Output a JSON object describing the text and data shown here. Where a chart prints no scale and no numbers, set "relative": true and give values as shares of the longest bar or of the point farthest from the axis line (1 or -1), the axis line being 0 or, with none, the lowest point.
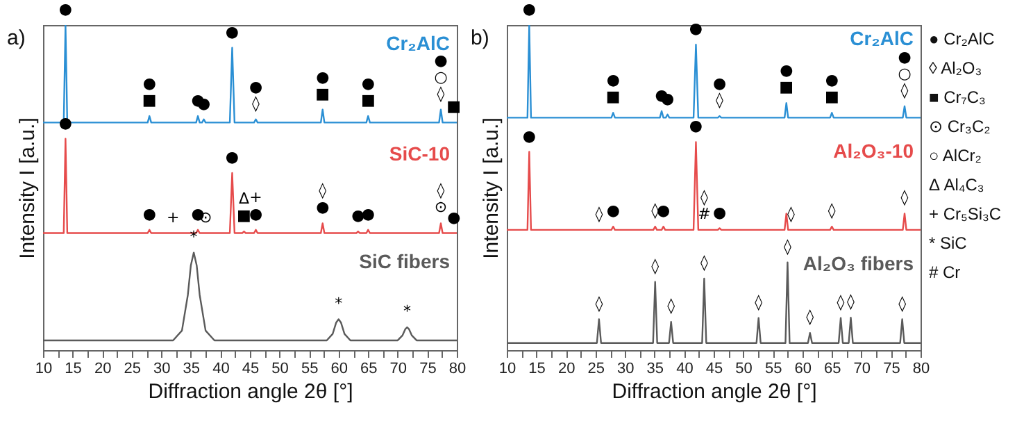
{
  "chart_data": [
    {
      "type": "line",
      "title": "a)",
      "xlabel": "Diffraction angle 2θ [°]",
      "ylabel": "Intensity I [a.u.]",
      "relative": true,
      "tick_labels": "x",
      "xlim": [
        10,
        80
      ],
      "xticks": [
        10,
        {
          "value": 12.5,
          "label": null
        },
        15,
        {
          "value": 17.5,
          "label": null
        },
        20,
        {
          "value": 22.5,
          "label": null
        },
        25,
        {
          "value": 27.5,
          "label": null
        },
        30,
        {
          "value": 32.5,
          "label": null
        },
        35,
        {
          "value": 37.5,
          "label": null
        },
        40,
        {
          "value": 42.5,
          "label": null
        },
        45,
        {
          "value": 47.5,
          "label": null
        },
        50,
        {
          "value": 52.5,
          "label": null
        },
        55,
        {
          "value": 57.5,
          "label": null
        },
        60,
        {
          "value": 62.5,
          "label": null
        },
        65,
        {
          "value": 67.5,
          "label": null
        },
        70,
        {
          "value": 72.5,
          "label": null
        },
        75,
        {
          "value": 77.5,
          "label": null
        },
        80
      ],
      "series": [
        {
          "name": "Cr₂AlC",
          "color": "#2a8fd4",
          "x": [
            10,
            13.5,
            13.8,
            14.1,
            27.7,
            28,
            28.3,
            35.9,
            36.2,
            36.5,
            36.9,
            37.2,
            37.5,
            41.6,
            42,
            42.4,
            45.7,
            46,
            46.3,
            57,
            57.3,
            57.6,
            64.7,
            65,
            65.3,
            77,
            77.3,
            77.6,
            80
          ],
          "values": [
            0.7,
            0.7,
            1.0,
            0.7,
            0.7,
            0.72,
            0.7,
            0.7,
            0.72,
            0.7,
            0.7,
            0.71,
            0.7,
            0.7,
            0.93,
            0.7,
            0.7,
            0.71,
            0.7,
            0.7,
            0.74,
            0.7,
            0.7,
            0.72,
            0.7,
            0.7,
            0.74,
            0.7,
            0.7
          ]
        },
        {
          "name": "SiC-10",
          "color": "#e64b4b",
          "x": [
            10,
            13.5,
            13.8,
            14.1,
            27.7,
            28,
            28.3,
            35.9,
            36.2,
            36.5,
            41.6,
            42,
            42.4,
            43.7,
            44,
            44.3,
            45.7,
            46,
            46.3,
            57,
            57.3,
            57.6,
            63,
            63.3,
            63.6,
            64.7,
            65,
            65.3,
            77,
            77.3,
            77.6,
            80
          ],
          "values": [
            0.36,
            0.36,
            0.65,
            0.36,
            0.36,
            0.37,
            0.36,
            0.36,
            0.37,
            0.36,
            0.36,
            0.545,
            0.36,
            0.36,
            0.365,
            0.36,
            0.36,
            0.37,
            0.36,
            0.36,
            0.39,
            0.36,
            0.36,
            0.365,
            0.36,
            0.36,
            0.37,
            0.36,
            0.36,
            0.39,
            0.36,
            0.36
          ]
        },
        {
          "name": "SiC fibers",
          "color": "#5a5a5a",
          "x": [
            10,
            32,
            33.5,
            34.5,
            35,
            35.5,
            36,
            36.5,
            37.5,
            39,
            58,
            59,
            59.6,
            60,
            60.4,
            61,
            62,
            70,
            70.8,
            71.3,
            71.6,
            71.9,
            72.4,
            73.2,
            80
          ],
          "values": [
            0.03,
            0.03,
            0.06,
            0.17,
            0.26,
            0.3,
            0.26,
            0.17,
            0.06,
            0.03,
            0.03,
            0.05,
            0.085,
            0.095,
            0.085,
            0.05,
            0.03,
            0.03,
            0.045,
            0.065,
            0.07,
            0.065,
            0.045,
            0.03,
            0.03
          ]
        }
      ],
      "annotations": [
        {
          "text": "●",
          "x": 13.8,
          "y": 1.0
        },
        {
          "text": "■",
          "x": 28,
          "y": 0.72
        },
        {
          "text": "●",
          "x": 28,
          "y": 0.72
        },
        {
          "text": "●",
          "x": 36.2,
          "y": 0.72
        },
        {
          "text": "●",
          "x": 37.2,
          "y": 0.71
        },
        {
          "text": "●",
          "x": 42,
          "y": 0.93
        },
        {
          "text": "◊",
          "x": 46,
          "y": 0.71
        },
        {
          "text": "●",
          "x": 46,
          "y": 0.71
        },
        {
          "text": "■",
          "x": 57.3,
          "y": 0.74
        },
        {
          "text": "●",
          "x": 57.3,
          "y": 0.74
        },
        {
          "text": "■",
          "x": 65,
          "y": 0.72
        },
        {
          "text": "●",
          "x": 65,
          "y": 0.72
        },
        {
          "text": "◊",
          "x": 77.3,
          "y": 0.74
        },
        {
          "text": "○",
          "x": 77.3,
          "y": 0.74
        },
        {
          "text": "●",
          "x": 77.3,
          "y": 0.74
        },
        {
          "text": "■",
          "x": 79.5,
          "y": 0.7
        },
        {
          "text": "●",
          "x": 13.8,
          "y": 0.65
        },
        {
          "text": "●",
          "x": 28,
          "y": 0.37
        },
        {
          "text": "+",
          "x": 32,
          "y": 0.36
        },
        {
          "text": "●",
          "x": 36.2,
          "y": 0.37
        },
        {
          "text": "⊙",
          "x": 37.5,
          "y": 0.36
        },
        {
          "text": "●",
          "x": 42,
          "y": 0.545
        },
        {
          "text": "■",
          "x": 44,
          "y": 0.365
        },
        {
          "text": "Δ",
          "x": 44,
          "y": 0.365
        },
        {
          "text": "●",
          "x": 46,
          "y": 0.37
        },
        {
          "text": "+",
          "x": 46,
          "y": 0.37
        },
        {
          "text": "●",
          "x": 57.3,
          "y": 0.39
        },
        {
          "text": "◊",
          "x": 57.3,
          "y": 0.39
        },
        {
          "text": "●",
          "x": 63.3,
          "y": 0.365
        },
        {
          "text": "●",
          "x": 65,
          "y": 0.37
        },
        {
          "text": "⊙",
          "x": 77.3,
          "y": 0.39
        },
        {
          "text": "◊",
          "x": 77.3,
          "y": 0.39
        },
        {
          "text": "●",
          "x": 79.5,
          "y": 0.36
        },
        {
          "text": "*",
          "x": 35.5,
          "y": 0.3
        },
        {
          "text": "*",
          "x": 60,
          "y": 0.095
        },
        {
          "text": "*",
          "x": 71.6,
          "y": 0.07
        }
      ]
    },
    {
      "type": "line",
      "title": "b)",
      "xlabel": "Diffraction angle 2θ [°]",
      "ylabel": "Intensity I [a.u.]",
      "relative": true,
      "tick_labels": "x",
      "xlim": [
        10,
        80
      ],
      "xticks": [
        10,
        {
          "value": 12.5,
          "label": null
        },
        15,
        {
          "value": 17.5,
          "label": null
        },
        20,
        {
          "value": 22.5,
          "label": null
        },
        25,
        {
          "value": 27.5,
          "label": null
        },
        30,
        {
          "value": 32.5,
          "label": null
        },
        35,
        {
          "value": 37.5,
          "label": null
        },
        40,
        {
          "value": 42.5,
          "label": null
        },
        45,
        {
          "value": 47.5,
          "label": null
        },
        50,
        {
          "value": 52.5,
          "label": null
        },
        55,
        {
          "value": 57.5,
          "label": null
        },
        60,
        {
          "value": 62.5,
          "label": null
        },
        65,
        {
          "value": 67.5,
          "label": null
        },
        70,
        {
          "value": 72.5,
          "label": null
        },
        75,
        {
          "value": 77.5,
          "label": null
        },
        80
      ],
      "series": [
        {
          "name": "Cr₂AlC",
          "color": "#2a8fd4",
          "x": [
            10,
            13.5,
            13.8,
            14.1,
            27.7,
            28,
            28.3,
            35.9,
            36.2,
            36.5,
            36.9,
            37.2,
            37.5,
            41.6,
            42,
            42.4,
            45.7,
            46,
            46.3,
            57,
            57.3,
            57.6,
            64.7,
            65,
            65.3,
            77,
            77.3,
            77.6,
            80
          ],
          "values": [
            0.715,
            0.715,
            1.0,
            0.715,
            0.715,
            0.73,
            0.715,
            0.715,
            0.735,
            0.715,
            0.715,
            0.725,
            0.715,
            0.715,
            0.94,
            0.715,
            0.715,
            0.72,
            0.715,
            0.715,
            0.76,
            0.715,
            0.715,
            0.73,
            0.715,
            0.715,
            0.75,
            0.715,
            0.715
          ]
        },
        {
          "name": "Al₂O₃-10",
          "color": "#e64b4b",
          "x": [
            10,
            13.5,
            13.8,
            14.1,
            27.7,
            28,
            28.3,
            34.8,
            35.1,
            35.4,
            36.2,
            36.5,
            36.8,
            41.6,
            42,
            42.4,
            45.7,
            46,
            46.3,
            57,
            57.3,
            57.6,
            64.7,
            65,
            65.3,
            77,
            77.3,
            77.6,
            80
          ],
          "values": [
            0.37,
            0.37,
            0.61,
            0.37,
            0.37,
            0.38,
            0.37,
            0.37,
            0.38,
            0.37,
            0.37,
            0.38,
            0.37,
            0.37,
            0.64,
            0.37,
            0.37,
            0.375,
            0.37,
            0.37,
            0.42,
            0.37,
            0.37,
            0.38,
            0.37,
            0.37,
            0.42,
            0.37,
            0.37
          ]
        },
        {
          "name": "Al₂O₃ fibers",
          "color": "#5a5a5a",
          "x": [
            10,
            25.25,
            25.6,
            25.95,
            34.75,
            35.1,
            35.45,
            37.45,
            37.8,
            38.15,
            43.05,
            43.4,
            43.75,
            52.25,
            52.6,
            52.95,
            57.15,
            57.5,
            57.85,
            60.95,
            61.3,
            61.65,
            66.15,
            66.5,
            66.85,
            67.85,
            68.2,
            68.55,
            76.55,
            76.9,
            77.25,
            80
          ],
          "values": [
            0.022,
            0.022,
            0.095,
            0.022,
            0.022,
            0.21,
            0.022,
            0.022,
            0.087,
            0.022,
            0.022,
            0.22,
            0.022,
            0.022,
            0.099,
            0.022,
            0.022,
            0.27,
            0.022,
            0.022,
            0.053,
            0.022,
            0.022,
            0.099,
            0.022,
            0.022,
            0.1,
            0.022,
            0.022,
            0.095,
            0.022,
            0.022
          ]
        }
      ],
      "annotations": [
        {
          "text": "●",
          "x": 13.8,
          "y": 1.0
        },
        {
          "text": "■",
          "x": 28,
          "y": 0.73
        },
        {
          "text": "●",
          "x": 28,
          "y": 0.73
        },
        {
          "text": "●",
          "x": 36.2,
          "y": 0.735
        },
        {
          "text": "●",
          "x": 37.2,
          "y": 0.725
        },
        {
          "text": "●",
          "x": 42,
          "y": 0.94
        },
        {
          "text": "◊",
          "x": 46,
          "y": 0.72
        },
        {
          "text": "●",
          "x": 46,
          "y": 0.72
        },
        {
          "text": "■",
          "x": 57.3,
          "y": 0.76
        },
        {
          "text": "●",
          "x": 57.3,
          "y": 0.76
        },
        {
          "text": "■",
          "x": 65,
          "y": 0.73
        },
        {
          "text": "●",
          "x": 65,
          "y": 0.73
        },
        {
          "text": "◊",
          "x": 77.3,
          "y": 0.75
        },
        {
          "text": "○",
          "x": 77.3,
          "y": 0.75
        },
        {
          "text": "●",
          "x": 77.3,
          "y": 0.75
        },
        {
          "text": "●",
          "x": 13.8,
          "y": 0.61
        },
        {
          "text": "●",
          "x": 42,
          "y": 0.64
        },
        {
          "text": "◊",
          "x": 25.6,
          "y": 0.37
        },
        {
          "text": "●",
          "x": 28,
          "y": 0.38
        },
        {
          "text": "◊",
          "x": 35.1,
          "y": 0.38
        },
        {
          "text": "●",
          "x": 36.5,
          "y": 0.38
        },
        {
          "text": "#",
          "x": 43.4,
          "y": 0.37
        },
        {
          "text": "◊",
          "x": 43.4,
          "y": 0.37
        },
        {
          "text": "●",
          "x": 46,
          "y": 0.375
        },
        {
          "text": "◊",
          "x": 58.1,
          "y": 0.37
        },
        {
          "text": "◊",
          "x": 65,
          "y": 0.38
        },
        {
          "text": "◊",
          "x": 77.3,
          "y": 0.42
        },
        {
          "text": "◊",
          "x": 25.6,
          "y": 0.095
        },
        {
          "text": "◊",
          "x": 35.1,
          "y": 0.21
        },
        {
          "text": "◊",
          "x": 37.8,
          "y": 0.087
        },
        {
          "text": "◊",
          "x": 43.4,
          "y": 0.22
        },
        {
          "text": "◊",
          "x": 52.6,
          "y": 0.099
        },
        {
          "text": "◊",
          "x": 57.5,
          "y": 0.27
        },
        {
          "text": "◊",
          "x": 61.3,
          "y": 0.053
        },
        {
          "text": "◊",
          "x": 66.5,
          "y": 0.099
        },
        {
          "text": "◊",
          "x": 68.2,
          "y": 0.1
        },
        {
          "text": "◊",
          "x": 76.9,
          "y": 0.095
        },
        "● Cr₂AlC",
        "◊ Al₂O₃",
        "■ Cr₇C₃",
        "⊙ Cr₃C₂",
        "○ AlCr₂",
        "Δ Al₄C₃",
        "+ Cr₅Si₃C",
        "* SiC",
        "# Cr"
      ]
    }
  ]
}
